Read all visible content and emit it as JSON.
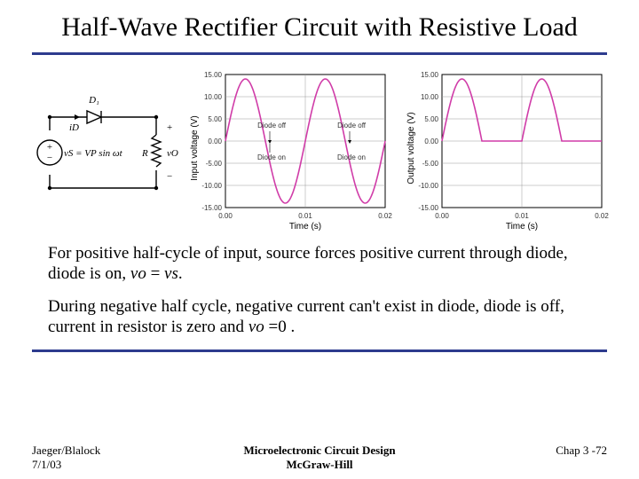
{
  "title": "Half-Wave Rectifier Circuit with Resistive Load",
  "circuit": {
    "diode_label": "D₁",
    "current_label": "iD",
    "source_label": "vS = VP sin ωt",
    "load_label": "R",
    "out_label": "vO",
    "plus": "+",
    "minus": "−"
  },
  "chart_in": {
    "ylabel": "Input voltage (V)",
    "xlabel": "Time (s)",
    "ylim": [
      -15,
      15
    ],
    "ytick_step": 5,
    "xlim": [
      0,
      0.02
    ],
    "xtick_step": 0.01,
    "xtick_labels": [
      "0.00",
      "0.01",
      "0.02"
    ],
    "amplitude": 14,
    "periods": 2,
    "curve_color": "#d03ca8",
    "notes": {
      "off": "Diode off",
      "on": "Diode on"
    }
  },
  "chart_out": {
    "ylabel": "Output voltage (V)",
    "xlabel": "Time (s)",
    "ylim": [
      -15,
      15
    ],
    "ytick_step": 5,
    "xlim": [
      0,
      0.02
    ],
    "xtick_step": 0.01,
    "xtick_labels": [
      "0.00",
      "0.01",
      "0.02"
    ],
    "amplitude": 14,
    "periods": 2,
    "curve_color": "#d03ca8"
  },
  "body": {
    "p1a": "For positive half-cycle of input, source forces positive current through diode, diode is on, ",
    "p1b": " = ",
    "p1c": ".",
    "p1_vo": "vo",
    "p1_vs": "vs",
    "p2a": "During negative half cycle, negative current can't exist in diode, diode is off, current in resistor is zero and ",
    "p2b": " =0 .",
    "p2_vo": "vo"
  },
  "footer": {
    "left1": "Jaeger/Blalock",
    "left2": "7/1/03",
    "center1": "Microelectronic Circuit Design",
    "center2": "McGraw-Hill",
    "right": "Chap 3 -72"
  }
}
